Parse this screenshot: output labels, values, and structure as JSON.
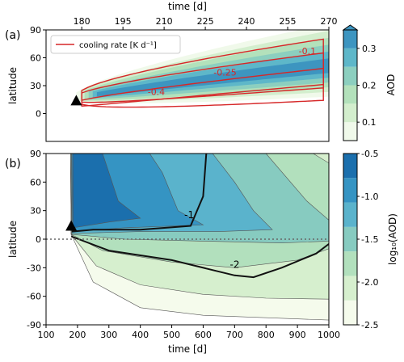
{
  "chart_data": [
    {
      "type": "contour",
      "panel_label": "(a)",
      "xlabel": "time [d]",
      "ylabel": "latitude",
      "x_ticks": [
        180,
        195,
        210,
        225,
        240,
        255,
        270
      ],
      "y_ticks": [
        0,
        30,
        60,
        90
      ],
      "xlim": [
        167,
        270
      ],
      "ylim": [
        -30,
        90
      ],
      "legend": {
        "position": "top-left",
        "label": "cooling rate [K d⁻¹]"
      },
      "contour_labels": [
        "-0.1",
        "-0.25",
        "-0.4"
      ],
      "colorbar": {
        "label": "AOD",
        "ticks": [
          "0.1",
          "0.2",
          "0.3"
        ],
        "range": [
          0.05,
          0.35
        ]
      },
      "marker": {
        "x": 178,
        "y": 14,
        "shape": "triangle"
      },
      "colors": {
        "fill": [
          "#f0f9ea",
          "#d3eecd",
          "#b3e1bb",
          "#8ccfbf",
          "#5eb7c9",
          "#3d95c0"
        ],
        "contour": "#d62728"
      }
    },
    {
      "type": "contour",
      "panel_label": "(b)",
      "xlabel": "time [d]",
      "ylabel": "latitude",
      "x_ticks": [
        100,
        200,
        300,
        400,
        500,
        600,
        700,
        800,
        900,
        1000
      ],
      "y_ticks": [
        -90,
        -60,
        -30,
        0,
        30,
        60,
        90
      ],
      "xlim": [
        100,
        1000
      ],
      "ylim": [
        -90,
        90
      ],
      "contour_labels": [
        "-1",
        "-2"
      ],
      "colorbar": {
        "label": "log₁₀(AOD)",
        "ticks": [
          "-2.5",
          "-2.0",
          "-1.5",
          "-1.0",
          "-0.5"
        ],
        "range": [
          -2.5,
          -0.5
        ]
      },
      "marker": {
        "x": 180,
        "y": 14,
        "shape": "triangle"
      },
      "equator_line": {
        "y": 0,
        "style": "dotted"
      },
      "colors": {
        "fill": [
          "#f5fbec",
          "#d6efce",
          "#b2e0bd",
          "#87cbc0",
          "#5ab3cc",
          "#3594c3",
          "#1b6fad"
        ]
      }
    }
  ]
}
